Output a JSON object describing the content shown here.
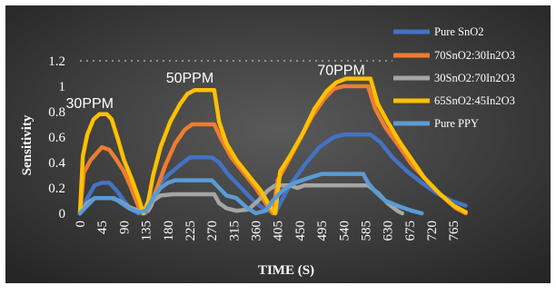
{
  "chart_data": {
    "type": "line",
    "xlabel": "TIME (S)",
    "ylabel": "Sensitivity",
    "xlim": [
      0,
      800
    ],
    "ylim": [
      0,
      1.2
    ],
    "yticks": [
      "0",
      "0.2",
      "0.4",
      "0.6",
      "0.8",
      "1",
      "1.2"
    ],
    "xticks": [
      "0",
      "45",
      "90",
      "135",
      "180",
      "225",
      "270",
      "315",
      "360",
      "405",
      "450",
      "495",
      "540",
      "585",
      "630",
      "675",
      "720",
      "765"
    ],
    "grid": false,
    "legend_position": "right",
    "annotations": [
      {
        "text": "30PPM",
        "x": 20,
        "y": 0.8
      },
      {
        "text": "50PPM",
        "x": 225,
        "y": 1.0
      },
      {
        "text": "70PPM",
        "x": 535,
        "y": 1.06
      }
    ],
    "series": [
      {
        "name": "Pure SnO2",
        "color": "#4472c4",
        "points": [
          [
            0,
            0
          ],
          [
            15,
            0.12
          ],
          [
            30,
            0.22
          ],
          [
            45,
            0.24
          ],
          [
            60,
            0.24
          ],
          [
            75,
            0.18
          ],
          [
            90,
            0.1
          ],
          [
            105,
            0.03
          ],
          [
            120,
            0
          ],
          [
            135,
            0
          ],
          [
            145,
            0.1
          ],
          [
            160,
            0.22
          ],
          [
            180,
            0.3
          ],
          [
            205,
            0.38
          ],
          [
            225,
            0.44
          ],
          [
            270,
            0.44
          ],
          [
            285,
            0.4
          ],
          [
            305,
            0.3
          ],
          [
            330,
            0.2
          ],
          [
            355,
            0.1
          ],
          [
            375,
            0.04
          ],
          [
            400,
            0
          ],
          [
            410,
            0.08
          ],
          [
            430,
            0.22
          ],
          [
            460,
            0.38
          ],
          [
            490,
            0.52
          ],
          [
            520,
            0.6
          ],
          [
            540,
            0.62
          ],
          [
            595,
            0.62
          ],
          [
            615,
            0.56
          ],
          [
            640,
            0.44
          ],
          [
            670,
            0.33
          ],
          [
            700,
            0.24
          ],
          [
            730,
            0.16
          ],
          [
            760,
            0.1
          ],
          [
            790,
            0.06
          ]
        ]
      },
      {
        "name": "70SnO2:30In2O3",
        "color": "#ed7d31",
        "points": [
          [
            0,
            0
          ],
          [
            8,
            0.32
          ],
          [
            22,
            0.42
          ],
          [
            36,
            0.48
          ],
          [
            45,
            0.52
          ],
          [
            60,
            0.5
          ],
          [
            75,
            0.42
          ],
          [
            90,
            0.33
          ],
          [
            105,
            0.2
          ],
          [
            120,
            0.05
          ],
          [
            130,
            0
          ],
          [
            145,
            0.05
          ],
          [
            158,
            0.2
          ],
          [
            175,
            0.38
          ],
          [
            195,
            0.55
          ],
          [
            215,
            0.66
          ],
          [
            230,
            0.7
          ],
          [
            275,
            0.7
          ],
          [
            290,
            0.58
          ],
          [
            310,
            0.44
          ],
          [
            335,
            0.32
          ],
          [
            360,
            0.2
          ],
          [
            380,
            0.08
          ],
          [
            395,
            0
          ],
          [
            405,
            0.26
          ],
          [
            425,
            0.4
          ],
          [
            450,
            0.58
          ],
          [
            475,
            0.76
          ],
          [
            500,
            0.9
          ],
          [
            520,
            0.98
          ],
          [
            540,
            1.0
          ],
          [
            590,
            1.0
          ],
          [
            605,
            0.82
          ],
          [
            625,
            0.68
          ],
          [
            655,
            0.52
          ],
          [
            680,
            0.38
          ],
          [
            710,
            0.26
          ],
          [
            740,
            0.14
          ],
          [
            770,
            0.04
          ],
          [
            790,
            0
          ]
        ]
      },
      {
        "name": "30SnO2:70In2O3",
        "color": "#a5a5a5",
        "points": [
          [
            0,
            0
          ],
          [
            15,
            0.08
          ],
          [
            30,
            0.12
          ],
          [
            65,
            0.12
          ],
          [
            80,
            0.1
          ],
          [
            100,
            0.05
          ],
          [
            120,
            0.02
          ],
          [
            140,
            0.02
          ],
          [
            150,
            0.1
          ],
          [
            165,
            0.14
          ],
          [
            190,
            0.15
          ],
          [
            275,
            0.15
          ],
          [
            285,
            0.08
          ],
          [
            300,
            0.04
          ],
          [
            320,
            0.02
          ],
          [
            345,
            0.03
          ],
          [
            365,
            0.1
          ],
          [
            385,
            0.18
          ],
          [
            400,
            0.22
          ],
          [
            430,
            0.22
          ],
          [
            445,
            0.2
          ],
          [
            460,
            0.22
          ],
          [
            590,
            0.22
          ],
          [
            610,
            0.16
          ],
          [
            630,
            0.08
          ],
          [
            650,
            0.02
          ],
          [
            660,
            0
          ]
        ]
      },
      {
        "name": "65SnO2:45In2O3",
        "color": "#ffc000",
        "points": [
          [
            0,
            0
          ],
          [
            6,
            0.45
          ],
          [
            15,
            0.62
          ],
          [
            28,
            0.74
          ],
          [
            40,
            0.78
          ],
          [
            55,
            0.78
          ],
          [
            65,
            0.74
          ],
          [
            78,
            0.58
          ],
          [
            90,
            0.42
          ],
          [
            105,
            0.28
          ],
          [
            120,
            0.12
          ],
          [
            130,
            0
          ],
          [
            140,
            0.1
          ],
          [
            150,
            0.3
          ],
          [
            165,
            0.52
          ],
          [
            185,
            0.72
          ],
          [
            205,
            0.86
          ],
          [
            220,
            0.94
          ],
          [
            235,
            0.97
          ],
          [
            275,
            0.97
          ],
          [
            285,
            0.72
          ],
          [
            300,
            0.55
          ],
          [
            320,
            0.42
          ],
          [
            345,
            0.3
          ],
          [
            370,
            0.18
          ],
          [
            390,
            0.05
          ],
          [
            400,
            0
          ],
          [
            410,
            0.33
          ],
          [
            430,
            0.45
          ],
          [
            455,
            0.62
          ],
          [
            480,
            0.82
          ],
          [
            505,
            0.96
          ],
          [
            525,
            1.03
          ],
          [
            545,
            1.06
          ],
          [
            595,
            1.06
          ],
          [
            610,
            0.86
          ],
          [
            630,
            0.72
          ],
          [
            655,
            0.56
          ],
          [
            680,
            0.42
          ],
          [
            705,
            0.28
          ],
          [
            735,
            0.16
          ],
          [
            765,
            0.06
          ],
          [
            790,
            0.01
          ]
        ]
      },
      {
        "name": "Pure PPY",
        "color": "#5b9bd5",
        "points": [
          [
            0,
            0
          ],
          [
            15,
            0.06
          ],
          [
            30,
            0.12
          ],
          [
            70,
            0.12
          ],
          [
            85,
            0.08
          ],
          [
            100,
            0.04
          ],
          [
            120,
            0.01
          ],
          [
            135,
            0.02
          ],
          [
            150,
            0.12
          ],
          [
            165,
            0.2
          ],
          [
            180,
            0.24
          ],
          [
            195,
            0.26
          ],
          [
            270,
            0.26
          ],
          [
            285,
            0.2
          ],
          [
            300,
            0.14
          ],
          [
            320,
            0.12
          ],
          [
            340,
            0.05
          ],
          [
            360,
            0
          ],
          [
            380,
            0.02
          ],
          [
            395,
            0.1
          ],
          [
            415,
            0.18
          ],
          [
            440,
            0.24
          ],
          [
            470,
            0.28
          ],
          [
            495,
            0.31
          ],
          [
            580,
            0.31
          ],
          [
            590,
            0.24
          ],
          [
            605,
            0.17
          ],
          [
            625,
            0.1
          ],
          [
            650,
            0.06
          ],
          [
            680,
            0.02
          ],
          [
            700,
            0
          ]
        ]
      }
    ]
  }
}
